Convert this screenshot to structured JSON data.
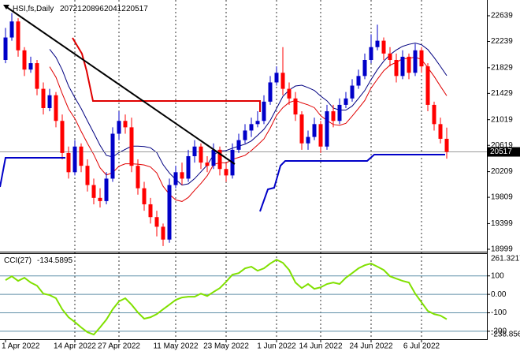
{
  "chart_data": [
    {
      "type": "candlestick",
      "title": "HSI,fs,Daily",
      "categories": [
        "1 Apr 2022",
        null,
        null,
        null,
        null,
        null,
        null,
        null,
        null,
        null,
        null,
        "14 Apr 2022",
        null,
        null,
        null,
        null,
        null,
        null,
        "27 Apr 2022",
        null,
        null,
        null,
        null,
        null,
        null,
        null,
        null,
        "11 May 2022",
        null,
        null,
        null,
        null,
        null,
        null,
        null,
        "23 May 2022",
        null,
        null,
        null,
        null,
        null,
        null,
        null,
        "1 Jun 2022",
        null,
        null,
        null,
        null,
        null,
        null,
        "14 Jun 2022",
        null,
        null,
        null,
        null,
        null,
        null,
        null,
        "24 Jun 2022",
        null,
        null,
        null,
        null,
        null,
        null,
        null,
        "6 Jul 2022",
        null,
        null,
        null,
        null
      ],
      "open": [
        21950,
        22300,
        22550,
        22100,
        21800,
        21900,
        21500,
        21200,
        21400,
        21000,
        20500,
        20200,
        20600,
        20300,
        20000,
        19800,
        19750,
        20100,
        20800,
        21000,
        20900,
        20300,
        19950,
        19700,
        19500,
        19350,
        19150,
        20000,
        20200,
        20100,
        20450,
        20600,
        20350,
        20300,
        20550,
        20250,
        20150,
        20550,
        20700,
        20850,
        20950,
        21000,
        21300,
        21600,
        21750,
        21500,
        21350,
        21100,
        20650,
        20750,
        20950,
        20600,
        21150,
        21000,
        21250,
        21350,
        21550,
        21700,
        21950,
        22150,
        22250,
        22050,
        21950,
        21700,
        22000,
        21750,
        22100,
        21850,
        21250,
        20950,
        20721
      ],
      "high": [
        22450,
        22680,
        22600,
        22150,
        22000,
        21950,
        21600,
        21500,
        21450,
        21100,
        20600,
        20700,
        20650,
        20400,
        20100,
        19950,
        20200,
        20900,
        21150,
        21100,
        21050,
        20400,
        20050,
        19800,
        19600,
        19400,
        20100,
        20300,
        20350,
        20550,
        20700,
        20650,
        20450,
        20650,
        20600,
        20350,
        20650,
        20800,
        20950,
        21050,
        21150,
        21400,
        21700,
        21850,
        22150,
        21600,
        21450,
        21150,
        20850,
        21050,
        21000,
        21250,
        21250,
        21350,
        21450,
        21650,
        21800,
        22050,
        22350,
        22500,
        22300,
        22150,
        22050,
        22100,
        22050,
        22200,
        22150,
        21900,
        21300,
        21050,
        20896
      ],
      "low": [
        21900,
        22250,
        22000,
        21700,
        21750,
        21400,
        21100,
        21150,
        20900,
        20400,
        20100,
        20150,
        20200,
        19900,
        19700,
        19650,
        19700,
        20050,
        20700,
        20800,
        20200,
        19850,
        19600,
        19400,
        19200,
        19050,
        19100,
        19950,
        20000,
        20050,
        20350,
        20250,
        20200,
        20250,
        20150,
        20050,
        20100,
        20500,
        20650,
        20750,
        20900,
        20950,
        21250,
        21550,
        21400,
        21250,
        21000,
        20550,
        20550,
        20700,
        20500,
        20550,
        20900,
        20950,
        21200,
        21300,
        21500,
        21650,
        21900,
        22100,
        21950,
        21850,
        21600,
        21650,
        21650,
        21700,
        21750,
        21150,
        20850,
        20650,
        20412
      ],
      "close": [
        22300,
        22550,
        22100,
        21800,
        21900,
        21500,
        21200,
        21400,
        21000,
        20500,
        20200,
        20600,
        20300,
        20000,
        19800,
        19750,
        20100,
        20800,
        21000,
        20900,
        20300,
        19950,
        19700,
        19500,
        19350,
        19150,
        20000,
        20200,
        20100,
        20450,
        20600,
        20350,
        20300,
        20550,
        20250,
        20150,
        20550,
        20700,
        20850,
        20950,
        21000,
        21300,
        21600,
        21750,
        21500,
        21350,
        21100,
        20650,
        20750,
        20950,
        20600,
        21150,
        21000,
        21250,
        21350,
        21550,
        21700,
        21950,
        22150,
        22250,
        22050,
        21950,
        21700,
        22000,
        21750,
        22100,
        21850,
        21250,
        20950,
        20721,
        20517
      ],
      "up_color": "#0000c8",
      "down_color": "#ff0000",
      "ylim": [
        18974,
        22860
      ],
      "yticks": [
        22639,
        22239,
        21829,
        21429,
        21019,
        20619,
        20209,
        19809,
        19399,
        18999
      ]
    },
    {
      "type": "line",
      "title": "CCI(27)",
      "color": "#80e000",
      "values": [
        77,
        98,
        73,
        90,
        64,
        47,
        4,
        -4,
        -21,
        -81,
        -124,
        -150,
        -179,
        -205,
        -218,
        -179,
        -137,
        -81,
        -38,
        -21,
        -56,
        -98,
        -132,
        -124,
        -107,
        -81,
        -56,
        -30,
        -17,
        -13,
        -13,
        4,
        -9,
        13,
        34,
        68,
        107,
        115,
        141,
        150,
        128,
        141,
        167,
        188,
        171,
        132,
        64,
        34,
        56,
        30,
        38,
        56,
        64,
        56,
        90,
        115,
        141,
        158,
        167,
        150,
        132,
        98,
        85,
        73,
        64,
        4,
        -43,
        -90,
        -107,
        -115,
        -134.5895
      ],
      "ylim": [
        -238.856,
        261.3217
      ],
      "yticks": [
        261.3217,
        100,
        {
          "value": 0,
          "label": "0.00"
        },
        -100,
        -200,
        -238.856
      ]
    }
  ]
}
